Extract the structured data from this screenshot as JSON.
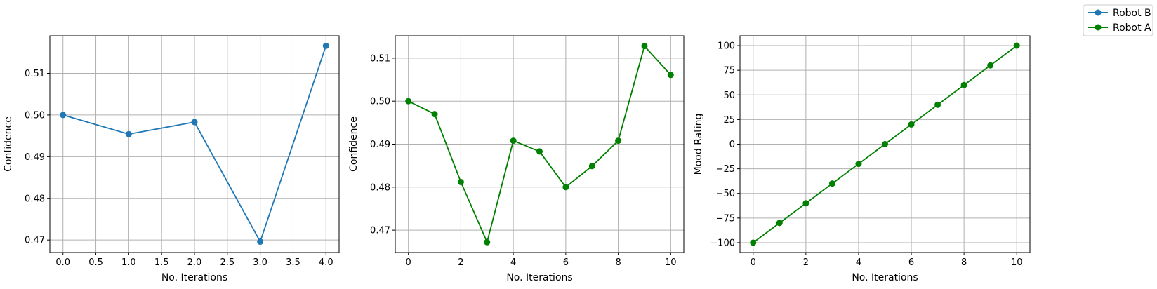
{
  "legend": {
    "placement": "top-right",
    "entries": [
      {
        "label": "Robot B",
        "color": "#1f77b4"
      },
      {
        "label": "Robot A",
        "color": "#008000"
      }
    ]
  },
  "chart_data": [
    {
      "type": "line",
      "xlabel": "No. Iterations",
      "ylabel": "Confidence",
      "xlim": [
        -0.2,
        4.2
      ],
      "ylim": [
        0.467,
        0.519
      ],
      "xticks": [
        "0.0",
        "0.5",
        "1.0",
        "1.5",
        "2.0",
        "2.5",
        "3.0",
        "3.5",
        "4.0"
      ],
      "yticks": [
        "0.47",
        "0.48",
        "0.49",
        "0.50",
        "0.51"
      ],
      "grid": true,
      "series": [
        {
          "name": "Robot B",
          "color": "#1f77b4",
          "x": [
            0,
            1,
            2,
            3,
            4
          ],
          "y": [
            0.5,
            0.4954,
            0.4983,
            0.4696,
            0.5166
          ]
        }
      ]
    },
    {
      "type": "line",
      "xlabel": "No. Iterations",
      "ylabel": "Confidence",
      "xlim": [
        -0.5,
        10.5
      ],
      "ylim": [
        0.4648,
        0.5152
      ],
      "xticks": [
        "0",
        "2",
        "4",
        "6",
        "8",
        "10"
      ],
      "yticks": [
        "0.47",
        "0.48",
        "0.49",
        "0.50",
        "0.51"
      ],
      "grid": true,
      "series": [
        {
          "name": "Robot A",
          "color": "#008000",
          "x": [
            0,
            1,
            2,
            3,
            4,
            5,
            6,
            7,
            8,
            9,
            10
          ],
          "y": [
            0.5,
            0.497,
            0.4812,
            0.4672,
            0.4908,
            0.4883,
            0.48,
            0.4849,
            0.4908,
            0.5128,
            0.5061
          ]
        }
      ]
    },
    {
      "type": "line",
      "xlabel": "No. Iterations",
      "ylabel": "Mood Rating",
      "xlim": [
        -0.5,
        10.5
      ],
      "ylim": [
        -110,
        110
      ],
      "xticks": [
        "0",
        "2",
        "4",
        "6",
        "8",
        "10"
      ],
      "yticks": [
        "−100",
        "−75",
        "−50",
        "−25",
        "0",
        "25",
        "50",
        "75",
        "100"
      ],
      "grid": true,
      "series": [
        {
          "name": "Robot A",
          "color": "#008000",
          "x": [
            0,
            1,
            2,
            3,
            4,
            5,
            6,
            7,
            8,
            9,
            10
          ],
          "y": [
            -100,
            -80,
            -60,
            -40,
            -20,
            0,
            20,
            40,
            60,
            80,
            100
          ]
        }
      ]
    }
  ]
}
